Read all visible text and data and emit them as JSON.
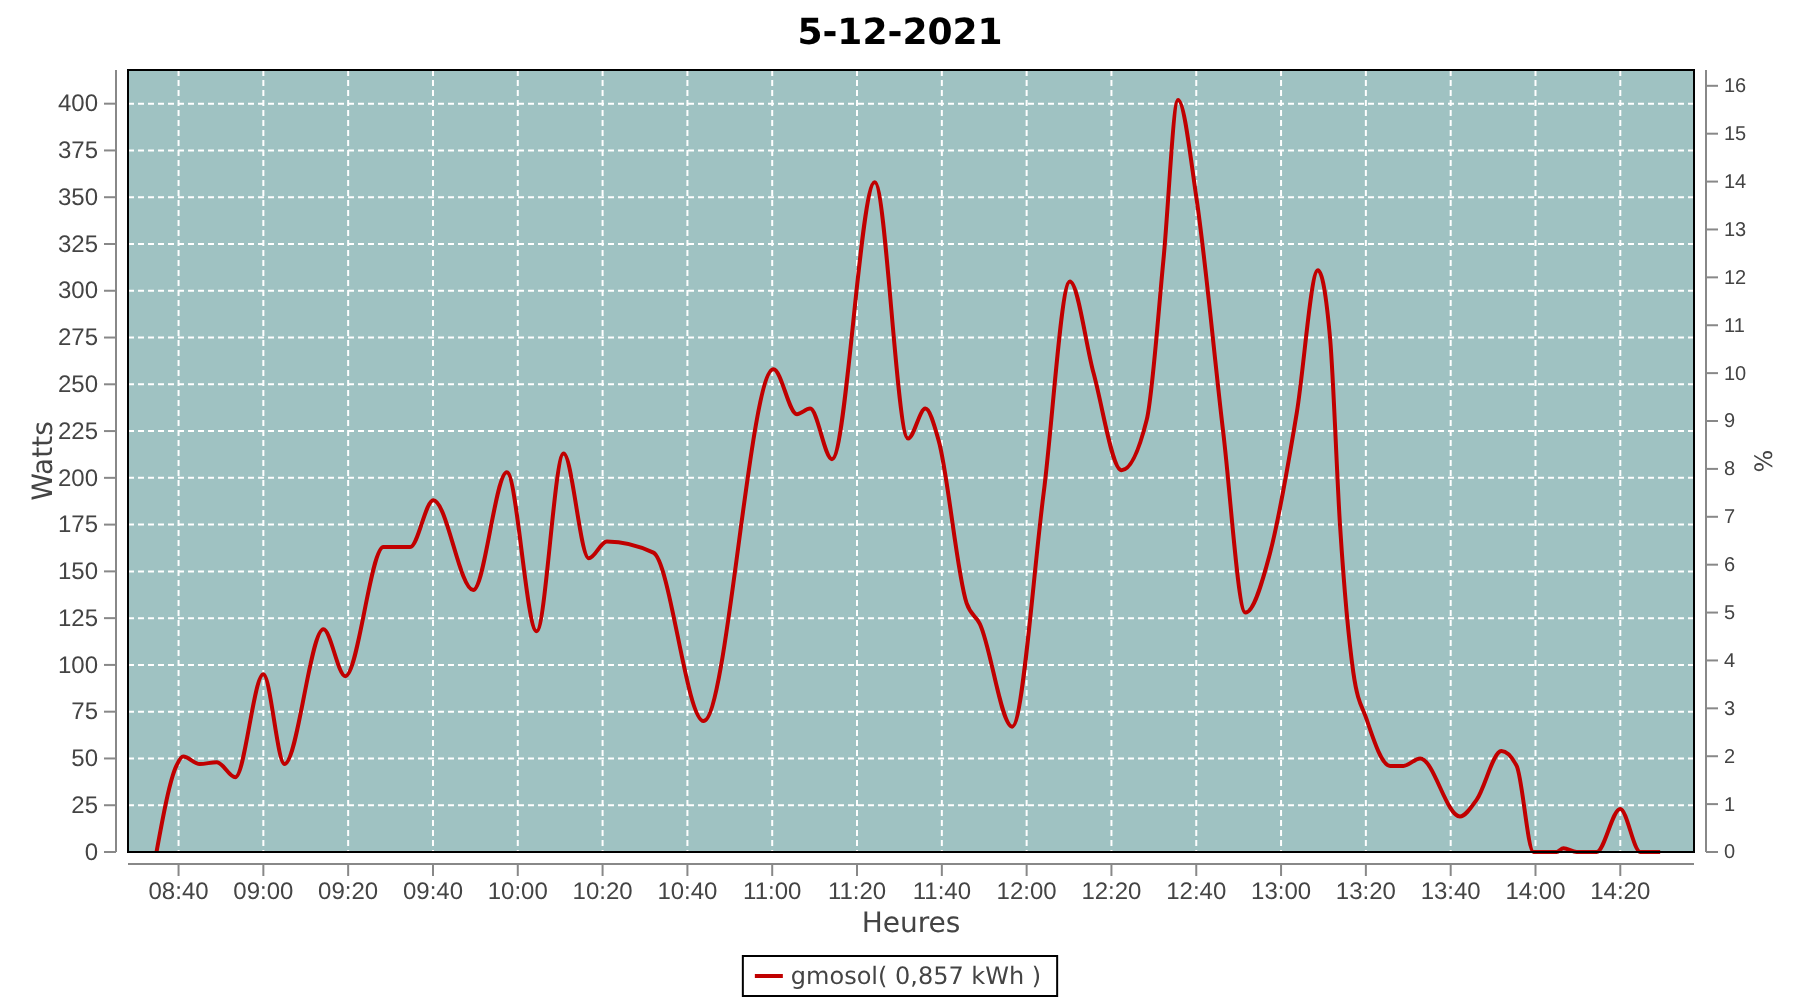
{
  "chart_data": {
    "type": "line",
    "title": "5-12-2021",
    "xlabel": "Heures",
    "ylabel": "Watts",
    "y2label": "%",
    "xlim": [
      8.468,
      14.623
    ],
    "xticks": [
      {
        "value": 8.6667,
        "label": "08:40"
      },
      {
        "value": 9,
        "label": "09:00"
      },
      {
        "value": 9.3333,
        "label": "09:20"
      },
      {
        "value": 9.6667,
        "label": "09:40"
      },
      {
        "value": 10,
        "label": "10:00"
      },
      {
        "value": 10.3333,
        "label": "10:20"
      },
      {
        "value": 10.6667,
        "label": "10:40"
      },
      {
        "value": 11,
        "label": "11:00"
      },
      {
        "value": 11.3333,
        "label": "11:20"
      },
      {
        "value": 11.6667,
        "label": "11:40"
      },
      {
        "value": 12,
        "label": "12:00"
      },
      {
        "value": 12.3333,
        "label": "12:20"
      },
      {
        "value": 12.6667,
        "label": "12:40"
      },
      {
        "value": 13,
        "label": "13:00"
      },
      {
        "value": 13.3333,
        "label": "13:20"
      },
      {
        "value": 13.6667,
        "label": "13:40"
      },
      {
        "value": 14,
        "label": "14:00"
      },
      {
        "value": 14.3333,
        "label": "14:20"
      }
    ],
    "ylim": [
      0,
      418
    ],
    "yticks": [
      0,
      25,
      50,
      75,
      100,
      125,
      150,
      175,
      200,
      225,
      250,
      275,
      300,
      325,
      350,
      375,
      400
    ],
    "y2lim": [
      0,
      16.33
    ],
    "y2ticks": [
      0,
      1,
      2,
      3,
      4,
      5,
      6,
      7,
      8,
      9,
      10,
      11,
      12,
      13,
      14,
      15,
      16
    ],
    "grid": true,
    "legend": "bottom",
    "line_style": "solid",
    "marker": "none",
    "series": [
      {
        "name": "gmosol( 0,857 kWh )",
        "color": "#c00000",
        "x": [
          8.58,
          8.658,
          8.685,
          8.75,
          8.817,
          8.89,
          9.0,
          9.083,
          9.236,
          9.322,
          9.472,
          9.577,
          9.668,
          9.825,
          9.957,
          10.074,
          10.18,
          10.279,
          10.35,
          10.533,
          10.73,
          11.005,
          11.097,
          11.149,
          11.235,
          11.403,
          11.534,
          11.602,
          11.654,
          11.764,
          11.816,
          11.943,
          12.067,
          12.17,
          12.263,
          12.373,
          12.472,
          12.538,
          12.595,
          12.668,
          12.773,
          12.86,
          12.957,
          13.062,
          13.145,
          13.193,
          13.232,
          13.284,
          13.336,
          13.429,
          13.481,
          13.547,
          13.703,
          13.769,
          13.866,
          13.926,
          13.992,
          14.083,
          14.11,
          14.162,
          14.24,
          14.333,
          14.412,
          14.49
        ],
        "values": [
          0,
          46,
          51,
          47,
          48,
          40,
          95,
          47,
          119,
          94,
          163,
          163,
          188,
          140,
          203,
          118,
          213,
          157,
          166,
          160,
          70,
          258,
          234,
          237,
          210,
          358,
          221,
          237,
          220,
          133,
          122,
          67,
          192,
          305,
          256,
          204,
          231,
          317,
          402,
          349,
          224,
          128,
          160,
          235,
          311,
          274,
          174,
          96,
          71,
          46,
          46,
          50,
          19,
          28,
          54,
          46,
          0,
          0,
          2,
          0,
          0,
          23,
          0,
          0
        ]
      }
    ]
  }
}
